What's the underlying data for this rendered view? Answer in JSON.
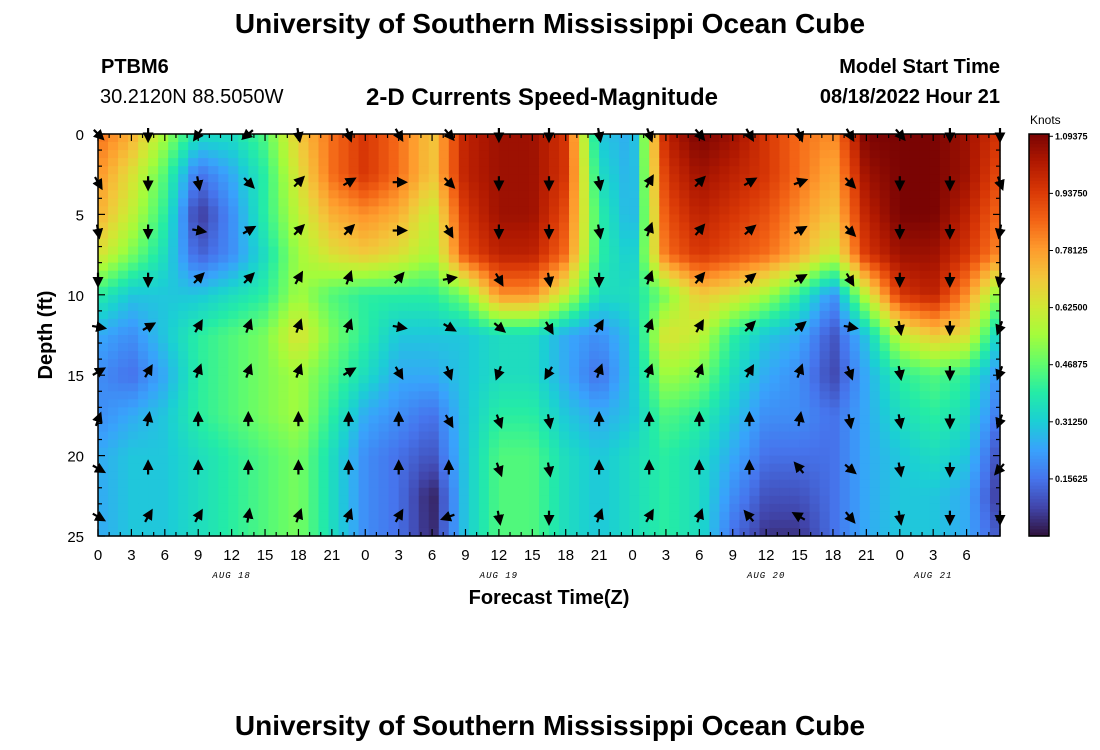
{
  "header": {
    "title": "University of Southern Mississippi Ocean Cube",
    "station_id": "PTBM6",
    "station_coords": "30.2120N  88.5050W",
    "subtitle": "2-D Currents Speed-Magnitude",
    "model_start_label": "Model Start Time",
    "model_start_value": "08/18/2022 Hour 21"
  },
  "footer": {
    "title": "University of Southern Mississippi Ocean Cube"
  },
  "chart_data": {
    "type": "heatmap",
    "title": "2-D Currents Speed-Magnitude",
    "xlabel": "Forecast Time(Z)",
    "ylabel": "Depth (ft)",
    "x_range_hours": [
      0,
      81
    ],
    "y_range_ft": [
      0,
      25
    ],
    "y_ticks": [
      "0",
      "5",
      "10",
      "15",
      "20",
      "25"
    ],
    "y_tick_values": [
      0,
      5,
      10,
      15,
      20,
      25
    ],
    "x_tick_labels": [
      "0",
      "3",
      "6",
      "9",
      "12",
      "15",
      "18",
      "21",
      "0",
      "3",
      "6",
      "9",
      "12",
      "15",
      "18",
      "21",
      "0",
      "3",
      "6",
      "9",
      "12",
      "15",
      "18",
      "21",
      "0",
      "3",
      "6"
    ],
    "date_labels": [
      {
        "label": "AUG 18",
        "hour": 12
      },
      {
        "label": "AUG 19",
        "hour": 36
      },
      {
        "label": "AUG 20",
        "hour": 60
      },
      {
        "label": "AUG 21",
        "hour": 75
      }
    ],
    "colorbar": {
      "units": "Knots",
      "min": 0,
      "max": 1.1,
      "tick_labels": [
        "1.09375",
        "0.93750",
        "0.78125",
        "0.62500",
        "0.46875",
        "0.31250",
        "0.15625"
      ],
      "tick_values": [
        1.09375,
        0.9375,
        0.78125,
        0.625,
        0.46875,
        0.3125,
        0.15625
      ],
      "colors": [
        "#30123b",
        "#4145ab",
        "#4675ed",
        "#39a2fc",
        "#1bcfd4",
        "#24eca6",
        "#61fc6c",
        "#a4fc3b",
        "#d1e834",
        "#f3c63a",
        "#fe9b2d",
        "#f36315",
        "#d93806",
        "#b11901",
        "#7a0403"
      ]
    },
    "speed_grid": {
      "rows_depth_ft": [
        0,
        2.5,
        5,
        7.5,
        10,
        12.5,
        15,
        17.5,
        20,
        22.5,
        25
      ],
      "cols_hour": [
        0,
        3,
        6,
        9,
        12,
        15,
        18,
        21,
        24,
        27,
        30,
        33,
        36,
        39,
        42,
        45,
        48,
        51,
        54,
        57,
        60,
        63,
        66,
        69,
        72,
        75,
        78,
        81
      ],
      "values_knots": [
        [
          0.85,
          0.75,
          0.55,
          0.35,
          0.35,
          0.45,
          0.7,
          0.85,
          0.95,
          0.85,
          0.7,
          1.0,
          1.05,
          1.05,
          0.95,
          0.3,
          0.25,
          1.0,
          1.1,
          1.05,
          0.95,
          0.85,
          0.8,
          1.1,
          1.1,
          1.1,
          1.05,
          0.95
        ],
        [
          0.8,
          0.65,
          0.45,
          0.15,
          0.25,
          0.4,
          0.65,
          0.85,
          0.95,
          0.85,
          0.7,
          1.0,
          1.05,
          1.05,
          0.95,
          0.35,
          0.25,
          0.95,
          1.05,
          1.0,
          0.95,
          0.85,
          0.75,
          1.05,
          1.1,
          1.1,
          1.05,
          0.9
        ],
        [
          0.75,
          0.6,
          0.4,
          0.05,
          0.2,
          0.4,
          0.6,
          0.75,
          0.8,
          0.75,
          0.6,
          0.95,
          1.05,
          1.05,
          0.9,
          0.4,
          0.25,
          0.9,
          1.0,
          0.95,
          0.9,
          0.8,
          0.7,
          1.0,
          1.1,
          1.1,
          1.0,
          0.85
        ],
        [
          0.65,
          0.5,
          0.35,
          0.12,
          0.2,
          0.35,
          0.55,
          0.65,
          0.7,
          0.65,
          0.55,
          0.9,
          1.0,
          1.0,
          0.85,
          0.4,
          0.3,
          0.85,
          0.95,
          0.9,
          0.85,
          0.75,
          0.6,
          0.95,
          1.05,
          1.05,
          0.95,
          0.8
        ],
        [
          0.4,
          0.3,
          0.3,
          0.3,
          0.35,
          0.4,
          0.55,
          0.45,
          0.4,
          0.4,
          0.4,
          0.5,
          0.8,
          0.8,
          0.6,
          0.35,
          0.35,
          0.5,
          0.7,
          0.65,
          0.55,
          0.4,
          0.2,
          0.6,
          0.95,
          1.0,
          0.8,
          0.5
        ],
        [
          0.25,
          0.2,
          0.3,
          0.4,
          0.45,
          0.5,
          0.65,
          0.5,
          0.4,
          0.3,
          0.3,
          0.3,
          0.35,
          0.35,
          0.25,
          0.2,
          0.3,
          0.65,
          0.6,
          0.4,
          0.3,
          0.25,
          0.1,
          0.3,
          0.6,
          0.7,
          0.65,
          0.3
        ],
        [
          0.2,
          0.15,
          0.25,
          0.4,
          0.45,
          0.5,
          0.55,
          0.45,
          0.35,
          0.25,
          0.25,
          0.3,
          0.35,
          0.35,
          0.25,
          0.15,
          0.3,
          0.55,
          0.5,
          0.35,
          0.25,
          0.2,
          0.08,
          0.25,
          0.4,
          0.45,
          0.4,
          0.2
        ],
        [
          0.2,
          0.25,
          0.3,
          0.4,
          0.45,
          0.5,
          0.55,
          0.4,
          0.25,
          0.2,
          0.15,
          0.3,
          0.4,
          0.4,
          0.3,
          0.25,
          0.3,
          0.45,
          0.4,
          0.3,
          0.2,
          0.2,
          0.15,
          0.25,
          0.35,
          0.4,
          0.35,
          0.15
        ],
        [
          0.25,
          0.3,
          0.3,
          0.35,
          0.4,
          0.45,
          0.5,
          0.35,
          0.2,
          0.15,
          0.1,
          0.3,
          0.45,
          0.45,
          0.35,
          0.3,
          0.35,
          0.4,
          0.35,
          0.25,
          0.15,
          0.15,
          0.15,
          0.25,
          0.3,
          0.35,
          0.3,
          0.08
        ],
        [
          0.25,
          0.3,
          0.3,
          0.35,
          0.4,
          0.45,
          0.5,
          0.35,
          0.2,
          0.15,
          0.02,
          0.3,
          0.45,
          0.45,
          0.35,
          0.3,
          0.35,
          0.4,
          0.35,
          0.2,
          0.1,
          0.1,
          0.15,
          0.25,
          0.3,
          0.3,
          0.25,
          0.05
        ],
        [
          0.25,
          0.3,
          0.3,
          0.35,
          0.4,
          0.45,
          0.5,
          0.35,
          0.2,
          0.15,
          0.03,
          0.3,
          0.45,
          0.45,
          0.35,
          0.3,
          0.35,
          0.4,
          0.35,
          0.15,
          0.05,
          0.05,
          0.15,
          0.25,
          0.3,
          0.3,
          0.25,
          0.1
        ]
      ]
    },
    "vectors": {
      "cols_hour": [
        0,
        4.5,
        9,
        13.5,
        18,
        22.5,
        27,
        31.5,
        36,
        40.5,
        45,
        49.5,
        54,
        58.5,
        63,
        67.5,
        72,
        76.5,
        81
      ],
      "rows_depth_ft": [
        0,
        3,
        6,
        9,
        12,
        14.8,
        17.8,
        20.8,
        23.8
      ],
      "directions_deg": [
        [
          135,
          180,
          215,
          230,
          170,
          160,
          150,
          140,
          180,
          180,
          170,
          160,
          140,
          150,
          160,
          150,
          140,
          180,
          180
        ],
        [
          150,
          180,
          170,
          135,
          45,
          60,
          90,
          135,
          180,
          180,
          170,
          30,
          45,
          60,
          70,
          135,
          180,
          180,
          160
        ],
        [
          170,
          180,
          100,
          60,
          45,
          45,
          90,
          150,
          180,
          180,
          170,
          20,
          40,
          50,
          60,
          135,
          180,
          180,
          190
        ],
        [
          180,
          180,
          45,
          45,
          30,
          20,
          40,
          80,
          150,
          170,
          180,
          20,
          40,
          50,
          60,
          150,
          180,
          180,
          190
        ],
        [
          100,
          60,
          30,
          20,
          20,
          20,
          100,
          120,
          130,
          150,
          30,
          20,
          30,
          45,
          50,
          100,
          170,
          180,
          200
        ],
        [
          60,
          30,
          20,
          20,
          20,
          60,
          150,
          160,
          200,
          210,
          20,
          20,
          20,
          30,
          20,
          160,
          170,
          180,
          200
        ],
        [
          20,
          10,
          0,
          0,
          0,
          0,
          0,
          150,
          160,
          170,
          0,
          0,
          0,
          0,
          10,
          170,
          170,
          180,
          200
        ],
        [
          120,
          0,
          0,
          0,
          0,
          0,
          0,
          0,
          160,
          170,
          0,
          0,
          0,
          0,
          320,
          130,
          170,
          180,
          220
        ],
        [
          120,
          30,
          30,
          10,
          20,
          20,
          30,
          250,
          170,
          180,
          20,
          30,
          20,
          320,
          300,
          140,
          170,
          180,
          180
        ]
      ]
    }
  }
}
